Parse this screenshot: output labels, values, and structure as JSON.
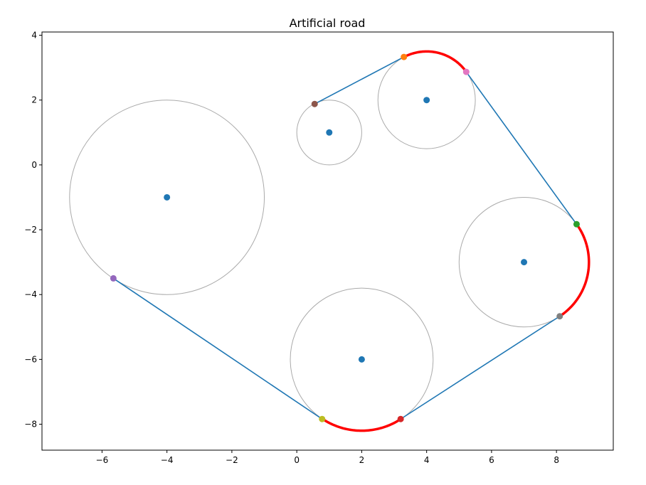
{
  "chart_data": {
    "type": "scatter",
    "title": "Artificial road",
    "xlabel": "",
    "ylabel": "",
    "xlim": [
      -7.85,
      9.75
    ],
    "ylim": [
      -8.8,
      4.1
    ],
    "xticks": [
      -6,
      -4,
      -2,
      0,
      2,
      4,
      6,
      8
    ],
    "yticks": [
      -8,
      -6,
      -4,
      -2,
      0,
      2,
      4
    ],
    "xtick_labels": [
      "−6",
      "−4",
      "−2",
      "0",
      "2",
      "4",
      "6",
      "8"
    ],
    "ytick_labels": [
      "−8",
      "−6",
      "−4",
      "−2",
      "0",
      "2",
      "4"
    ],
    "grid": false,
    "legend": "none",
    "colors": {
      "center": "#1f77b4",
      "circle": "#aaaaaa",
      "road": "#1f77b4",
      "arc": "#ff0000"
    },
    "circles": [
      {
        "cx": -4,
        "cy": -1,
        "r": 3.0
      },
      {
        "cx": 1,
        "cy": 1,
        "r": 1.0
      },
      {
        "cx": 4,
        "cy": 2,
        "r": 1.5
      },
      {
        "cx": 7,
        "cy": -3,
        "r": 2.0
      },
      {
        "cx": 2,
        "cy": -6,
        "r": 2.2
      }
    ],
    "road_segments": [
      {
        "from": [
          0.55,
          1.88
        ],
        "to": [
          3.3,
          3.33
        ]
      },
      {
        "from": [
          5.22,
          2.87
        ],
        "to": [
          8.62,
          -1.83
        ]
      },
      {
        "from": [
          8.1,
          -4.67
        ],
        "to": [
          3.2,
          -7.84
        ]
      },
      {
        "from": [
          0.78,
          -7.84
        ],
        "to": [
          -5.65,
          -3.5
        ]
      }
    ],
    "arcs": [
      {
        "circle": 2,
        "from": [
          3.3,
          3.33
        ],
        "to": [
          5.22,
          2.87
        ]
      },
      {
        "circle": 3,
        "from": [
          8.62,
          -1.83
        ],
        "to": [
          8.1,
          -4.67
        ]
      },
      {
        "circle": 4,
        "from": [
          3.2,
          -7.84
        ],
        "to": [
          0.78,
          -7.84
        ]
      }
    ],
    "tangent_points": [
      {
        "x": 0.55,
        "y": 1.88,
        "color": "#8c564b"
      },
      {
        "x": 3.3,
        "y": 3.33,
        "color": "#ff7f0e"
      },
      {
        "x": 5.22,
        "y": 2.87,
        "color": "#e377c2"
      },
      {
        "x": 8.62,
        "y": -1.83,
        "color": "#2ca02c"
      },
      {
        "x": 8.1,
        "y": -4.67,
        "color": "#7f7f7f"
      },
      {
        "x": 3.2,
        "y": -7.84,
        "color": "#d62728"
      },
      {
        "x": 0.78,
        "y": -7.84,
        "color": "#bcbd22"
      },
      {
        "x": -5.65,
        "y": -3.5,
        "color": "#9467bd"
      }
    ]
  }
}
